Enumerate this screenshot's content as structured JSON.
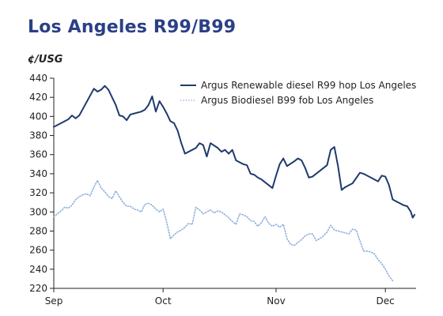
{
  "title": "Los Angeles R99/B99",
  "chart_data": {
    "type": "line",
    "unit_label": "¢/USG",
    "xlabel": "",
    "ylabel": "",
    "ylim": [
      220,
      440
    ],
    "y_ticks": [
      440,
      420,
      400,
      380,
      360,
      340,
      320,
      300,
      280,
      260,
      240,
      220
    ],
    "x_range": [
      "2024-09-01",
      "2024-12-09"
    ],
    "x_ticks": [
      {
        "date": "2024-09-01",
        "label": "Sep"
      },
      {
        "date": "2024-10-01",
        "label": "Oct"
      },
      {
        "date": "2024-11-01",
        "label": "Nov"
      },
      {
        "date": "2024-12-01",
        "label": "Dec"
      }
    ],
    "grid": false,
    "legend_position": "top-right",
    "series": [
      {
        "name": "Argus Renewable diesel R99 hop Los Angeles",
        "color": "#1f3a6e",
        "style": "solid",
        "points": [
          [
            "2024-09-01",
            389
          ],
          [
            "2024-09-03",
            393
          ],
          [
            "2024-09-05",
            397
          ],
          [
            "2024-09-06",
            401
          ],
          [
            "2024-09-07",
            398
          ],
          [
            "2024-09-08",
            401
          ],
          [
            "2024-09-09",
            408
          ],
          [
            "2024-09-10",
            415
          ],
          [
            "2024-09-12",
            429
          ],
          [
            "2024-09-13",
            426
          ],
          [
            "2024-09-14",
            428
          ],
          [
            "2024-09-15",
            432
          ],
          [
            "2024-09-16",
            428
          ],
          [
            "2024-09-18",
            412
          ],
          [
            "2024-09-19",
            401
          ],
          [
            "2024-09-20",
            400
          ],
          [
            "2024-09-21",
            396
          ],
          [
            "2024-09-22",
            402
          ],
          [
            "2024-09-23",
            403
          ],
          [
            "2024-09-25",
            405
          ],
          [
            "2024-09-26",
            407
          ],
          [
            "2024-09-27",
            412
          ],
          [
            "2024-09-28",
            421
          ],
          [
            "2024-09-29",
            405
          ],
          [
            "2024-09-30",
            416
          ],
          [
            "2024-10-01",
            410
          ],
          [
            "2024-10-02",
            403
          ],
          [
            "2024-10-03",
            395
          ],
          [
            "2024-10-04",
            393
          ],
          [
            "2024-10-05",
            385
          ],
          [
            "2024-10-06",
            372
          ],
          [
            "2024-10-07",
            361
          ],
          [
            "2024-10-09",
            365
          ],
          [
            "2024-10-10",
            367
          ],
          [
            "2024-10-11",
            372
          ],
          [
            "2024-10-12",
            370
          ],
          [
            "2024-10-13",
            358
          ],
          [
            "2024-10-14",
            372
          ],
          [
            "2024-10-16",
            367
          ],
          [
            "2024-10-17",
            363
          ],
          [
            "2024-10-18",
            365
          ],
          [
            "2024-10-19",
            361
          ],
          [
            "2024-10-20",
            365
          ],
          [
            "2024-10-21",
            354
          ],
          [
            "2024-10-23",
            350
          ],
          [
            "2024-10-24",
            349
          ],
          [
            "2024-10-25",
            340
          ],
          [
            "2024-10-26",
            339
          ],
          [
            "2024-10-27",
            336
          ],
          [
            "2024-10-28",
            334
          ],
          [
            "2024-10-29",
            331
          ],
          [
            "2024-10-30",
            328
          ],
          [
            "2024-10-31",
            325
          ],
          [
            "2024-11-01",
            338
          ],
          [
            "2024-11-02",
            350
          ],
          [
            "2024-11-03",
            356
          ],
          [
            "2024-11-04",
            348
          ],
          [
            "2024-11-06",
            353
          ],
          [
            "2024-11-07",
            356
          ],
          [
            "2024-11-08",
            354
          ],
          [
            "2024-11-09",
            346
          ],
          [
            "2024-11-10",
            336
          ],
          [
            "2024-11-11",
            337
          ],
          [
            "2024-11-13",
            343
          ],
          [
            "2024-11-15",
            349
          ],
          [
            "2024-11-16",
            365
          ],
          [
            "2024-11-17",
            368
          ],
          [
            "2024-11-18",
            348
          ],
          [
            "2024-11-19",
            323
          ],
          [
            "2024-11-20",
            326
          ],
          [
            "2024-11-22",
            330
          ],
          [
            "2024-11-24",
            341
          ],
          [
            "2024-11-25",
            340
          ],
          [
            "2024-11-27",
            336
          ],
          [
            "2024-11-29",
            332
          ],
          [
            "2024-11-30",
            338
          ],
          [
            "2024-12-01",
            337
          ],
          [
            "2024-12-02",
            328
          ],
          [
            "2024-12-03",
            313
          ],
          [
            "2024-12-04",
            311
          ],
          [
            "2024-12-05",
            309
          ],
          [
            "2024-12-06",
            307
          ],
          [
            "2024-12-07",
            306
          ],
          [
            "2024-12-08",
            300
          ],
          [
            "2024-12-08T12:00",
            294
          ],
          [
            "2024-12-09",
            297
          ]
        ]
      },
      {
        "name": "Argus Biodiesel B99 fob Los Angeles",
        "color": "#8fb0dc",
        "style": "dotted",
        "points": [
          [
            "2024-09-01",
            295
          ],
          [
            "2024-09-02",
            298
          ],
          [
            "2024-09-03",
            301
          ],
          [
            "2024-09-04",
            305
          ],
          [
            "2024-09-05",
            304
          ],
          [
            "2024-09-06",
            307
          ],
          [
            "2024-09-07",
            313
          ],
          [
            "2024-09-08",
            316
          ],
          [
            "2024-09-09",
            318
          ],
          [
            "2024-09-10",
            319
          ],
          [
            "2024-09-11",
            317
          ],
          [
            "2024-09-12",
            326
          ],
          [
            "2024-09-13",
            333
          ],
          [
            "2024-09-14",
            325
          ],
          [
            "2024-09-15",
            321
          ],
          [
            "2024-09-16",
            316
          ],
          [
            "2024-09-17",
            314
          ],
          [
            "2024-09-18",
            322
          ],
          [
            "2024-09-19",
            316
          ],
          [
            "2024-09-20",
            310
          ],
          [
            "2024-09-21",
            306
          ],
          [
            "2024-09-22",
            306
          ],
          [
            "2024-09-23",
            303
          ],
          [
            "2024-09-24",
            302
          ],
          [
            "2024-09-25",
            300
          ],
          [
            "2024-09-26",
            308
          ],
          [
            "2024-09-27",
            309
          ],
          [
            "2024-09-28",
            307
          ],
          [
            "2024-09-29",
            303
          ],
          [
            "2024-09-30",
            300
          ],
          [
            "2024-10-01",
            303
          ],
          [
            "2024-10-02",
            289
          ],
          [
            "2024-10-03",
            272
          ],
          [
            "2024-10-04",
            276
          ],
          [
            "2024-10-05",
            279
          ],
          [
            "2024-10-06",
            281
          ],
          [
            "2024-10-07",
            284
          ],
          [
            "2024-10-08",
            288
          ],
          [
            "2024-10-09",
            287
          ],
          [
            "2024-10-10",
            305
          ],
          [
            "2024-10-11",
            302
          ],
          [
            "2024-10-12",
            298
          ],
          [
            "2024-10-13",
            300
          ],
          [
            "2024-10-14",
            302
          ],
          [
            "2024-10-15",
            299
          ],
          [
            "2024-10-16",
            301
          ],
          [
            "2024-10-17",
            300
          ],
          [
            "2024-10-18",
            297
          ],
          [
            "2024-10-19",
            294
          ],
          [
            "2024-10-20",
            290
          ],
          [
            "2024-10-21",
            287
          ],
          [
            "2024-10-22",
            298
          ],
          [
            "2024-10-23",
            297
          ],
          [
            "2024-10-24",
            295
          ],
          [
            "2024-10-25",
            291
          ],
          [
            "2024-10-26",
            290
          ],
          [
            "2024-10-27",
            285
          ],
          [
            "2024-10-28",
            289
          ],
          [
            "2024-10-29",
            295
          ],
          [
            "2024-10-30",
            288
          ],
          [
            "2024-10-31",
            285
          ],
          [
            "2024-11-01",
            287
          ],
          [
            "2024-11-02",
            284
          ],
          [
            "2024-11-03",
            287
          ],
          [
            "2024-11-04",
            272
          ],
          [
            "2024-11-05",
            266
          ],
          [
            "2024-11-06",
            265
          ],
          [
            "2024-11-07",
            268
          ],
          [
            "2024-11-08",
            271
          ],
          [
            "2024-11-09",
            275
          ],
          [
            "2024-11-10",
            277
          ],
          [
            "2024-11-11",
            277
          ],
          [
            "2024-11-12",
            270
          ],
          [
            "2024-11-13",
            272
          ],
          [
            "2024-11-14",
            275
          ],
          [
            "2024-11-15",
            279
          ],
          [
            "2024-11-16",
            286
          ],
          [
            "2024-11-17",
            281
          ],
          [
            "2024-11-18",
            280
          ],
          [
            "2024-11-19",
            279
          ],
          [
            "2024-11-20",
            278
          ],
          [
            "2024-11-21",
            277
          ],
          [
            "2024-11-22",
            282
          ],
          [
            "2024-11-23",
            281
          ],
          [
            "2024-11-24",
            270
          ],
          [
            "2024-11-25",
            259
          ],
          [
            "2024-11-26",
            259
          ],
          [
            "2024-11-27",
            258
          ],
          [
            "2024-11-28",
            256
          ],
          [
            "2024-11-29",
            250
          ],
          [
            "2024-11-30",
            246
          ],
          [
            "2024-12-01",
            240
          ],
          [
            "2024-12-02",
            233
          ],
          [
            "2024-12-03",
            228
          ]
        ]
      }
    ]
  }
}
